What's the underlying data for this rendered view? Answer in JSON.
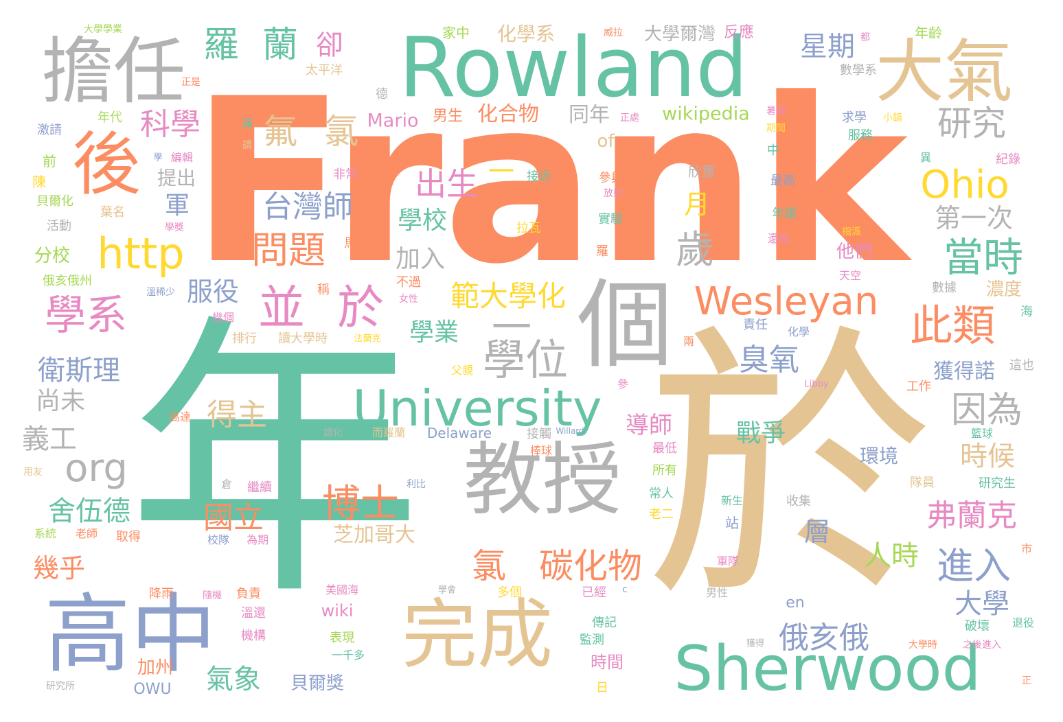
{
  "palette": {
    "teal": "#66c2a5",
    "orange": "#fc8d62",
    "blue": "#8da0cb",
    "pink": "#e78ac3",
    "green": "#a6d854",
    "yellow": "#ffd92f",
    "tan": "#e5c494",
    "gray": "#b3b3b3"
  },
  "words": [
    {
      "text": "年",
      "color": "teal"
    },
    {
      "text": "於",
      "color": "tan"
    },
    {
      "text": "Frank",
      "color": "orange"
    },
    {
      "text": "Rowland",
      "color": "teal"
    },
    {
      "text": "擔任",
      "color": "gray"
    },
    {
      "text": "大氣",
      "color": "tan"
    },
    {
      "text": "後",
      "color": "orange"
    },
    {
      "text": "個",
      "color": "gray"
    },
    {
      "text": "教授",
      "color": "gray"
    },
    {
      "text": "高中",
      "color": "blue"
    },
    {
      "text": "完成",
      "color": "tan"
    },
    {
      "text": "Sherwood",
      "color": "teal"
    },
    {
      "text": "University",
      "color": "teal"
    },
    {
      "text": "Wesleyan",
      "color": "orange"
    },
    {
      "text": "http",
      "color": "yellow"
    },
    {
      "text": "Ohio",
      "color": "yellow"
    },
    {
      "text": "並",
      "color": "pink"
    },
    {
      "text": "於",
      "color": "pink"
    },
    {
      "text": "學系",
      "color": "pink"
    },
    {
      "text": "羅",
      "color": "teal"
    },
    {
      "text": "蘭",
      "color": "teal"
    },
    {
      "text": "研究",
      "color": "gray"
    },
    {
      "text": "此類",
      "color": "orange"
    },
    {
      "text": "當時",
      "color": "teal"
    },
    {
      "text": "學位",
      "color": "gray"
    },
    {
      "text": "一",
      "color": "gray"
    },
    {
      "text": "一",
      "color": "yellow"
    },
    {
      "text": "氟",
      "color": "tan"
    },
    {
      "text": "氯",
      "color": "tan"
    },
    {
      "text": "科學",
      "color": "pink"
    },
    {
      "text": "出生",
      "color": "pink"
    },
    {
      "text": "台灣師",
      "color": "blue"
    },
    {
      "text": "問題",
      "color": "orange"
    },
    {
      "text": "歲",
      "color": "gray"
    },
    {
      "text": "org",
      "color": "gray"
    },
    {
      "text": "範大學化",
      "color": "yellow"
    },
    {
      "text": "博士",
      "color": "orange"
    },
    {
      "text": "氯",
      "color": "orange"
    },
    {
      "text": "碳化物",
      "color": "orange"
    },
    {
      "text": "進入",
      "color": "blue"
    },
    {
      "text": "因為",
      "color": "gray"
    },
    {
      "text": "弗蘭克",
      "color": "pink"
    },
    {
      "text": "國立",
      "color": "orange"
    },
    {
      "text": "舍伍德",
      "color": "teal"
    },
    {
      "text": "衛斯理",
      "color": "blue"
    },
    {
      "text": "星期",
      "color": "blue"
    },
    {
      "text": "卻",
      "color": "pink"
    },
    {
      "text": "第一次",
      "color": "gray"
    },
    {
      "text": "學校",
      "color": "teal"
    },
    {
      "text": "月",
      "color": "yellow"
    },
    {
      "text": "得主",
      "color": "tan"
    },
    {
      "text": "臭氧",
      "color": "blue"
    },
    {
      "text": "時候",
      "color": "tan"
    },
    {
      "text": "大學",
      "color": "blue"
    },
    {
      "text": "俄亥俄",
      "color": "blue"
    },
    {
      "text": "人時",
      "color": "green"
    },
    {
      "text": "學業",
      "color": "teal"
    },
    {
      "text": "服役",
      "color": "blue"
    },
    {
      "text": "尚未",
      "color": "gray"
    },
    {
      "text": "義工",
      "color": "gray"
    },
    {
      "text": "幾乎",
      "color": "orange"
    },
    {
      "text": "氣象",
      "color": "teal"
    },
    {
      "text": "戰爭",
      "color": "teal"
    },
    {
      "text": "加入",
      "color": "gray"
    },
    {
      "text": "芝加哥大",
      "color": "tan"
    },
    {
      "text": "軍",
      "color": "blue"
    },
    {
      "text": "層",
      "color": "blue"
    },
    {
      "text": "導師",
      "color": "pink"
    },
    {
      "text": "獲得諾",
      "color": "blue"
    },
    {
      "text": "環境",
      "color": "blue"
    },
    {
      "text": "wikipedia",
      "color": "green"
    },
    {
      "text": "Mario",
      "color": "pink"
    },
    {
      "text": "化合物",
      "color": "orange"
    },
    {
      "text": "化學系",
      "color": "tan"
    },
    {
      "text": "大學爾灣",
      "color": "gray"
    },
    {
      "text": "反應",
      "color": "pink"
    },
    {
      "text": "同年",
      "color": "gray"
    },
    {
      "text": "提出",
      "color": "gray"
    },
    {
      "text": "男生",
      "color": "orange"
    },
    {
      "text": "of",
      "color": "tan"
    },
    {
      "text": "他們",
      "color": "pink"
    },
    {
      "text": "濃度",
      "color": "tan"
    },
    {
      "text": "wiki",
      "color": "pink"
    },
    {
      "text": "加州",
      "color": "orange"
    },
    {
      "text": "OWU",
      "color": "blue"
    },
    {
      "text": "貝爾獎",
      "color": "blue"
    },
    {
      "text": "時間",
      "color": "pink"
    },
    {
      "text": "Delaware",
      "color": "blue"
    },
    {
      "text": "en",
      "color": "blue"
    },
    {
      "text": "分校",
      "color": "green"
    },
    {
      "text": "年代",
      "color": "green"
    },
    {
      "text": "家中",
      "color": "green"
    },
    {
      "text": "太平洋",
      "color": "tan"
    },
    {
      "text": "年齡",
      "color": "green"
    },
    {
      "text": "數學系",
      "color": "gray"
    },
    {
      "text": "求學",
      "color": "blue"
    },
    {
      "text": "服務",
      "color": "teal"
    },
    {
      "text": "紀錄",
      "color": "pink"
    },
    {
      "text": "最高",
      "color": "blue"
    },
    {
      "text": "欣蕙",
      "color": "gray"
    },
    {
      "text": "參與",
      "color": "orange"
    },
    {
      "text": "接近",
      "color": "teal"
    },
    {
      "text": "實驗",
      "color": "teal"
    },
    {
      "text": "拉瓦",
      "color": "yellow"
    },
    {
      "text": "非常",
      "color": "pink"
    },
    {
      "text": "激請",
      "color": "blue"
    },
    {
      "text": "前",
      "color": "green"
    },
    {
      "text": "陳",
      "color": "yellow"
    },
    {
      "text": "貝爾化",
      "color": "green"
    },
    {
      "text": "葉名",
      "color": "tan"
    },
    {
      "text": "活動",
      "color": "gray"
    },
    {
      "text": "學獎",
      "color": "pink"
    },
    {
      "text": "俄亥俄州",
      "color": "green"
    },
    {
      "text": "溫稀少",
      "color": "blue"
    },
    {
      "text": "稱",
      "color": "orange"
    },
    {
      "text": "不過",
      "color": "orange"
    },
    {
      "text": "女性",
      "color": "pink"
    },
    {
      "text": "排行",
      "color": "tan"
    },
    {
      "text": "讀大學時",
      "color": "tan"
    },
    {
      "text": "法蘭克",
      "color": "yellow"
    },
    {
      "text": "數據",
      "color": "gray"
    },
    {
      "text": "海",
      "color": "teal"
    },
    {
      "text": "這也",
      "color": "gray"
    },
    {
      "text": "責任",
      "color": "blue"
    },
    {
      "text": "化學",
      "color": "blue"
    },
    {
      "text": "工作",
      "color": "orange"
    },
    {
      "text": "Libby",
      "color": "pink"
    },
    {
      "text": "籃球",
      "color": "teal"
    },
    {
      "text": "研究生",
      "color": "teal"
    },
    {
      "text": "隊員",
      "color": "tan"
    },
    {
      "text": "收集",
      "color": "gray"
    },
    {
      "text": "站",
      "color": "blue"
    },
    {
      "text": "新生",
      "color": "teal"
    },
    {
      "text": "所有",
      "color": "green"
    },
    {
      "text": "常人",
      "color": "teal"
    },
    {
      "text": "最低",
      "color": "pink"
    },
    {
      "text": "老二",
      "color": "yellow"
    },
    {
      "text": "接觸",
      "color": "gray"
    },
    {
      "text": "棒球",
      "color": "orange"
    },
    {
      "text": "Willard",
      "color": "blue"
    },
    {
      "text": "讀化",
      "color": "gray"
    },
    {
      "text": "而羅蘭",
      "color": "tan"
    },
    {
      "text": "利比",
      "color": "blue"
    },
    {
      "text": "繼續",
      "color": "pink"
    },
    {
      "text": "倉",
      "color": "gray"
    },
    {
      "text": "系統",
      "color": "green"
    },
    {
      "text": "老師",
      "color": "orange"
    },
    {
      "text": "取得",
      "color": "orange"
    },
    {
      "text": "校隊",
      "color": "blue"
    },
    {
      "text": "為期",
      "color": "pink"
    },
    {
      "text": "降雨",
      "color": "orange"
    },
    {
      "text": "隨機",
      "color": "pink"
    },
    {
      "text": "負責",
      "color": "orange"
    },
    {
      "text": "溫還",
      "color": "pink"
    },
    {
      "text": "機構",
      "color": "pink"
    },
    {
      "text": "美國海",
      "color": "pink"
    },
    {
      "text": "學會",
      "color": "gray"
    },
    {
      "text": "多個",
      "color": "yellow"
    },
    {
      "text": "已經",
      "color": "pink"
    },
    {
      "text": "c",
      "color": "blue"
    },
    {
      "text": "軍隊",
      "color": "pink"
    },
    {
      "text": "男性",
      "color": "gray"
    },
    {
      "text": "表現",
      "color": "green"
    },
    {
      "text": "一千多",
      "color": "teal"
    },
    {
      "text": "監測",
      "color": "teal"
    },
    {
      "text": "傳記",
      "color": "teal"
    },
    {
      "text": "日",
      "color": "yellow"
    },
    {
      "text": "獲得",
      "color": "gray"
    },
    {
      "text": "大學時",
      "color": "orange"
    },
    {
      "text": "之後進入",
      "color": "pink"
    },
    {
      "text": "破壞",
      "color": "teal"
    },
    {
      "text": "退役",
      "color": "teal"
    },
    {
      "text": "市",
      "color": "orange"
    },
    {
      "text": "正",
      "color": "orange"
    },
    {
      "text": "研究所",
      "color": "gray"
    },
    {
      "text": "大學學業",
      "color": "green"
    },
    {
      "text": "正是",
      "color": "orange"
    },
    {
      "text": "德",
      "color": "gray"
    },
    {
      "text": "滿",
      "color": "teal"
    },
    {
      "text": "讀",
      "color": "tan"
    },
    {
      "text": "學",
      "color": "blue"
    },
    {
      "text": "編輯",
      "color": "pink"
    },
    {
      "text": "威拉",
      "color": "orange"
    },
    {
      "text": "都",
      "color": "pink"
    },
    {
      "text": "暑假",
      "color": "pink"
    },
    {
      "text": "期間",
      "color": "yellow"
    },
    {
      "text": "中",
      "color": "teal"
    },
    {
      "text": "正處",
      "color": "pink"
    },
    {
      "text": "小鎮",
      "color": "yellow"
    },
    {
      "text": "異",
      "color": "teal"
    },
    {
      "text": "年諾",
      "color": "teal"
    },
    {
      "text": "指派",
      "color": "yellow"
    },
    {
      "text": "還有",
      "color": "pink"
    },
    {
      "text": "放射",
      "color": "pink"
    },
    {
      "text": "羅",
      "color": "orange"
    },
    {
      "text": "馬",
      "color": "orange"
    },
    {
      "text": "天空",
      "color": "pink"
    },
    {
      "text": "幾個",
      "color": "pink"
    },
    {
      "text": "兩",
      "color": "orange"
    },
    {
      "text": "父親",
      "color": "yellow"
    },
    {
      "text": "參",
      "color": "pink"
    },
    {
      "text": "高達",
      "color": "orange"
    },
    {
      "text": "用友",
      "color": "tan"
    }
  ]
}
